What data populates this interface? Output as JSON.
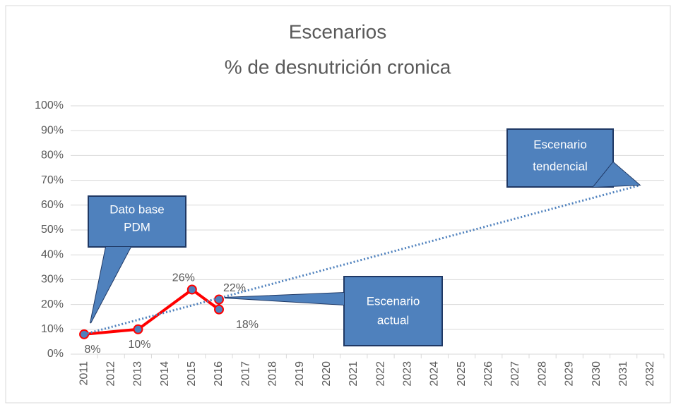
{
  "chart_data": {
    "type": "line",
    "title": "Escenarios",
    "subtitle": "% de desnutrición cronica",
    "series": [
      {
        "color": "#ff0000",
        "marker_color": "#4f81bd",
        "style": "solid",
        "x": [
          2011,
          2013,
          2015,
          2016,
          2016
        ],
        "values": [
          8,
          10,
          26,
          18,
          22
        ],
        "value_labels": [
          "8%",
          "10%",
          "26%",
          "18%",
          "22%"
        ]
      },
      {
        "color": "#4f81bd",
        "style": "dotted",
        "x": [
          2011,
          2031.6
        ],
        "values": [
          8,
          68
        ]
      }
    ],
    "xlim": [
      2010.5,
      2032.5
    ],
    "xticks": [
      2011,
      2012,
      2013,
      2014,
      2015,
      2016,
      2017,
      2018,
      2019,
      2020,
      2021,
      2022,
      2023,
      2024,
      2025,
      2026,
      2027,
      2028,
      2029,
      2030,
      2031,
      2032
    ],
    "ylim": [
      0,
      100
    ],
    "yticks": [
      {
        "value": 0,
        "label": "0%"
      },
      {
        "value": 10,
        "label": "10%"
      },
      {
        "value": 20,
        "label": "20%"
      },
      {
        "value": 30,
        "label": "30%"
      },
      {
        "value": 40,
        "label": "40%"
      },
      {
        "value": 50,
        "label": "50%"
      },
      {
        "value": 60,
        "label": "60%"
      },
      {
        "value": 70,
        "label": "70%"
      },
      {
        "value": 80,
        "label": "80%"
      },
      {
        "value": 90,
        "label": "90%"
      },
      {
        "value": 100,
        "label": "100%"
      }
    ],
    "grid": true,
    "annotations": [
      {
        "lines": [
          "Dato base",
          "PDM"
        ]
      },
      {
        "lines": [
          "Escenario",
          "actual"
        ]
      },
      {
        "lines": [
          "Escenario",
          "tendencial"
        ]
      }
    ]
  }
}
